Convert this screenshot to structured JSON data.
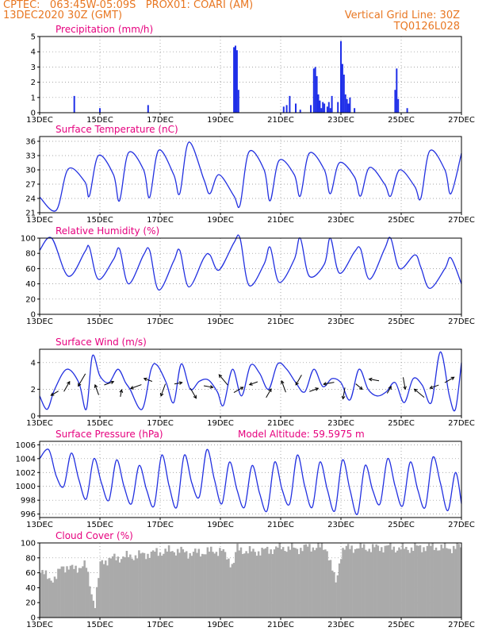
{
  "header": {
    "line1_left": "CPTEC:   063:45W-05:09S   PROX01: COARI (AM)",
    "line2_left": "13DEC2020 30Z (GMT)",
    "line2_right": "Vertical Grid Line: 30Z",
    "line3_right": "TQ0126L028"
  },
  "colors": {
    "header": "#e87722",
    "title": "#e6007e",
    "line": "#2230e0",
    "bar": "#1f2fe8",
    "cloud": "#aaaaaa"
  },
  "chart_data": [
    {
      "type": "bar",
      "title": "Precipitation (mm/h)",
      "ylim": [
        0,
        5
      ],
      "yticks": [
        0,
        1,
        2,
        3,
        4,
        5
      ],
      "xticks": [
        "13DEC",
        "15DEC",
        "17DEC",
        "19DEC",
        "21DEC",
        "23DEC",
        "25DEC",
        "27DEC"
      ],
      "x_day": [
        1.15,
        2.0,
        3.6,
        6.45,
        6.5,
        6.55,
        6.6,
        8.1,
        8.2,
        8.3,
        8.5,
        8.65,
        9.0,
        9.1,
        9.15,
        9.2,
        9.25,
        9.3,
        9.35,
        9.4,
        9.45,
        9.55,
        9.6,
        9.65,
        9.7,
        9.9,
        10.0,
        10.05,
        10.1,
        10.15,
        10.2,
        10.25,
        10.3,
        10.45,
        11.8,
        11.85,
        11.9,
        12.2
      ],
      "values": [
        1.1,
        0.3,
        0.5,
        4.3,
        4.4,
        4.1,
        1.5,
        0.4,
        0.5,
        1.1,
        0.6,
        0.2,
        0.5,
        2.9,
        3.0,
        2.4,
        1.2,
        0.8,
        0.3,
        0.7,
        0.6,
        0.4,
        0.7,
        0.3,
        1.1,
        0.7,
        4.7,
        3.2,
        2.5,
        1.2,
        0.9,
        0.6,
        1.0,
        0.3,
        1.5,
        2.9,
        0.9,
        0.3
      ]
    },
    {
      "type": "line",
      "title": "Surface Temperature (nC)",
      "ylim": [
        21,
        37
      ],
      "yticks": [
        21,
        24,
        27,
        30,
        33,
        36
      ],
      "xticks": [
        "13DEC",
        "15DEC",
        "17DEC",
        "19DEC",
        "21DEC",
        "23DEC",
        "25DEC",
        "27DEC"
      ],
      "x_day": [
        0,
        0.55,
        0.95,
        1.5,
        1.65,
        1.95,
        2.45,
        2.65,
        2.95,
        3.45,
        3.65,
        3.95,
        4.45,
        4.65,
        4.95,
        5.45,
        5.65,
        5.95,
        6.45,
        6.65,
        6.95,
        7.45,
        7.65,
        7.95,
        8.45,
        8.65,
        8.95,
        9.45,
        9.65,
        9.95,
        10.45,
        10.65,
        10.95,
        11.45,
        11.65,
        11.95,
        12.45,
        12.65,
        12.95,
        13.45,
        13.65,
        14.0
      ],
      "values": [
        24.3,
        21.5,
        30.2,
        27.5,
        24.5,
        33.0,
        29.0,
        23.5,
        33.6,
        30.0,
        24.2,
        34.1,
        29.0,
        25.0,
        35.8,
        28.0,
        25.0,
        29.0,
        24.5,
        22.6,
        33.8,
        30.0,
        23.5,
        32.0,
        29.0,
        24.5,
        33.5,
        30.0,
        25.0,
        31.5,
        28.5,
        24.5,
        30.5,
        27.0,
        24.5,
        30.0,
        26.5,
        24.0,
        34.0,
        30.0,
        25.0,
        33.5
      ]
    },
    {
      "type": "line",
      "title": "Relative Humidity (%)",
      "ylim": [
        0,
        100
      ],
      "yticks": [
        0,
        20,
        40,
        60,
        80,
        100
      ],
      "xticks": [
        "13DEC",
        "15DEC",
        "17DEC",
        "19DEC",
        "21DEC",
        "23DEC",
        "25DEC",
        "27DEC"
      ],
      "x_day": [
        0,
        0.4,
        0.95,
        1.5,
        1.65,
        1.95,
        2.45,
        2.65,
        2.95,
        3.45,
        3.65,
        3.95,
        4.45,
        4.65,
        4.95,
        5.45,
        5.65,
        5.95,
        6.45,
        6.65,
        6.95,
        7.45,
        7.65,
        7.95,
        8.45,
        8.65,
        8.95,
        9.45,
        9.65,
        9.95,
        10.45,
        10.65,
        10.95,
        11.45,
        11.65,
        11.95,
        12.45,
        12.65,
        12.95,
        13.45,
        13.65,
        14.0
      ],
      "values": [
        84,
        100,
        50,
        82,
        88,
        46,
        72,
        86,
        40,
        78,
        84,
        32,
        70,
        84,
        36,
        74,
        78,
        58,
        94,
        100,
        38,
        66,
        88,
        42,
        72,
        100,
        50,
        66,
        100,
        54,
        82,
        86,
        46,
        86,
        100,
        60,
        78,
        62,
        34,
        60,
        74,
        40
      ]
    },
    {
      "type": "line",
      "title": "Surface Wind (m/s)",
      "ylim": [
        0,
        5
      ],
      "yticks": [
        0,
        2,
        4
      ],
      "xticks": [
        "13DEC",
        "15DEC",
        "17DEC",
        "19DEC",
        "21DEC",
        "23DEC",
        "25DEC",
        "27DEC"
      ],
      "x_day": [
        0,
        0.25,
        0.5,
        0.9,
        1.3,
        1.55,
        1.75,
        2.0,
        2.3,
        2.6,
        2.85,
        3.0,
        3.4,
        3.7,
        3.9,
        4.2,
        4.45,
        4.7,
        5.0,
        5.3,
        5.6,
        5.9,
        6.1,
        6.4,
        6.7,
        7.0,
        7.3,
        7.6,
        7.9,
        8.2,
        8.5,
        8.8,
        9.1,
        9.4,
        9.7,
        10.0,
        10.3,
        10.6,
        10.9,
        11.2,
        11.5,
        11.8,
        12.1,
        12.4,
        12.7,
        13.0,
        13.3,
        13.6,
        13.8,
        14.0
      ],
      "values": [
        1.5,
        0.5,
        2.0,
        3.5,
        2.5,
        0.5,
        4.5,
        3.0,
        2.5,
        3.5,
        2.5,
        2.0,
        0.5,
        3.5,
        3.8,
        2.5,
        1.0,
        3.9,
        2.0,
        2.6,
        2.7,
        1.8,
        0.8,
        3.5,
        1.5,
        3.8,
        3.2,
        2.0,
        3.9,
        3.5,
        2.5,
        1.8,
        3.5,
        2.2,
        2.8,
        2.5,
        1.2,
        3.5,
        2.0,
        1.5,
        1.8,
        2.5,
        1.0,
        2.8,
        2.3,
        1.0,
        4.8,
        1.5,
        0.5,
        4.0
      ],
      "arrows_x_day": [
        0.5,
        0.9,
        1.4,
        1.9,
        2.3,
        2.7,
        3.2,
        3.6,
        4.1,
        4.6,
        5.1,
        5.6,
        6.1,
        6.6,
        7.1,
        7.6,
        8.1,
        8.6,
        9.1,
        9.6,
        10.1,
        10.6,
        11.1,
        11.6,
        12.1,
        12.6,
        13.1,
        13.6
      ],
      "arrows_dir_deg": [
        210,
        60,
        240,
        110,
        20,
        80,
        200,
        160,
        250,
        10,
        300,
        350,
        130,
        30,
        200,
        60,
        110,
        240,
        20,
        190,
        260,
        320,
        170,
        60,
        280,
        140,
        200,
        30
      ],
      "arrows_speed": [
        1.2,
        1.6,
        2.0,
        1.5,
        1.4,
        1.0,
        1.6,
        1.2,
        1.8,
        1.1,
        1.6,
        1.3,
        1.9,
        1.5,
        1.2,
        1.4,
        1.7,
        1.6,
        1.3,
        1.5,
        1.6,
        1.2,
        1.4,
        1.1,
        1.7,
        1.8,
        1.3,
        1.5
      ]
    },
    {
      "type": "line",
      "title": "Surface Pressure (hPa)",
      "subtitle": "Model Altitude: 59.5975  m",
      "ylim": [
        995.5,
        1006.5
      ],
      "yticks": [
        996,
        998,
        1000,
        1002,
        1004,
        1006
      ],
      "xticks": [
        "13DEC",
        "15DEC",
        "17DEC",
        "19DEC",
        "21DEC",
        "23DEC",
        "25DEC",
        "27DEC"
      ],
      "x_day": [
        0,
        0.3,
        0.55,
        0.8,
        1.05,
        1.3,
        1.55,
        1.8,
        2.05,
        2.3,
        2.55,
        2.8,
        3.05,
        3.3,
        3.55,
        3.8,
        4.05,
        4.3,
        4.55,
        4.8,
        5.05,
        5.3,
        5.55,
        5.8,
        6.05,
        6.3,
        6.55,
        6.8,
        7.05,
        7.3,
        7.55,
        7.8,
        8.05,
        8.3,
        8.55,
        8.8,
        9.05,
        9.3,
        9.55,
        9.8,
        10.05,
        10.3,
        10.55,
        10.8,
        11.05,
        11.3,
        11.55,
        11.8,
        12.05,
        12.3,
        12.55,
        12.8,
        13.05,
        13.3,
        13.55,
        13.8,
        14.0
      ],
      "values": [
        1004.0,
        1005.3,
        1001.5,
        1000.0,
        1004.8,
        1001.0,
        998.2,
        1004.0,
        1000.5,
        998.0,
        1003.8,
        1000.0,
        997.5,
        1003.0,
        999.5,
        997.2,
        1004.5,
        1000.0,
        997.0,
        1004.5,
        1000.5,
        998.5,
        1005.3,
        1001.0,
        997.5,
        1003.5,
        999.5,
        997.0,
        1003.0,
        999.0,
        996.5,
        1003.5,
        999.5,
        997.5,
        1004.5,
        1000.0,
        997.0,
        1003.5,
        999.5,
        996.5,
        1003.8,
        999.5,
        996.0,
        1003.0,
        999.5,
        997.5,
        1004.0,
        1000.0,
        997.2,
        1003.5,
        999.5,
        997.0,
        1004.2,
        1000.5,
        996.5,
        1002.0,
        997.5
      ]
    },
    {
      "type": "bar",
      "title": "Cloud Cover (%)",
      "ylim": [
        0,
        100
      ],
      "yticks": [
        0,
        20,
        40,
        60,
        80,
        100
      ],
      "xticks": [
        "13DEC",
        "15DEC",
        "17DEC",
        "19DEC",
        "21DEC",
        "23DEC",
        "25DEC",
        "27DEC"
      ],
      "x_day": [
        0,
        0.5,
        0.7,
        1.0,
        1.5,
        1.8,
        2.0,
        2.5,
        3.0,
        3.5,
        4.0,
        4.5,
        5.0,
        5.5,
        6.0,
        6.4,
        6.5,
        7.0,
        7.5,
        8.0,
        8.5,
        9.0,
        9.5,
        9.8,
        10.0,
        10.5,
        11.0,
        11.5,
        12.0,
        12.5,
        13.0,
        13.5,
        14.0
      ],
      "values": [
        60,
        50,
        70,
        65,
        70,
        15,
        75,
        80,
        82,
        85,
        88,
        90,
        86,
        88,
        90,
        70,
        92,
        88,
        90,
        94,
        92,
        95,
        93,
        45,
        92,
        94,
        93,
        95,
        92,
        94,
        95,
        93,
        95
      ]
    }
  ]
}
